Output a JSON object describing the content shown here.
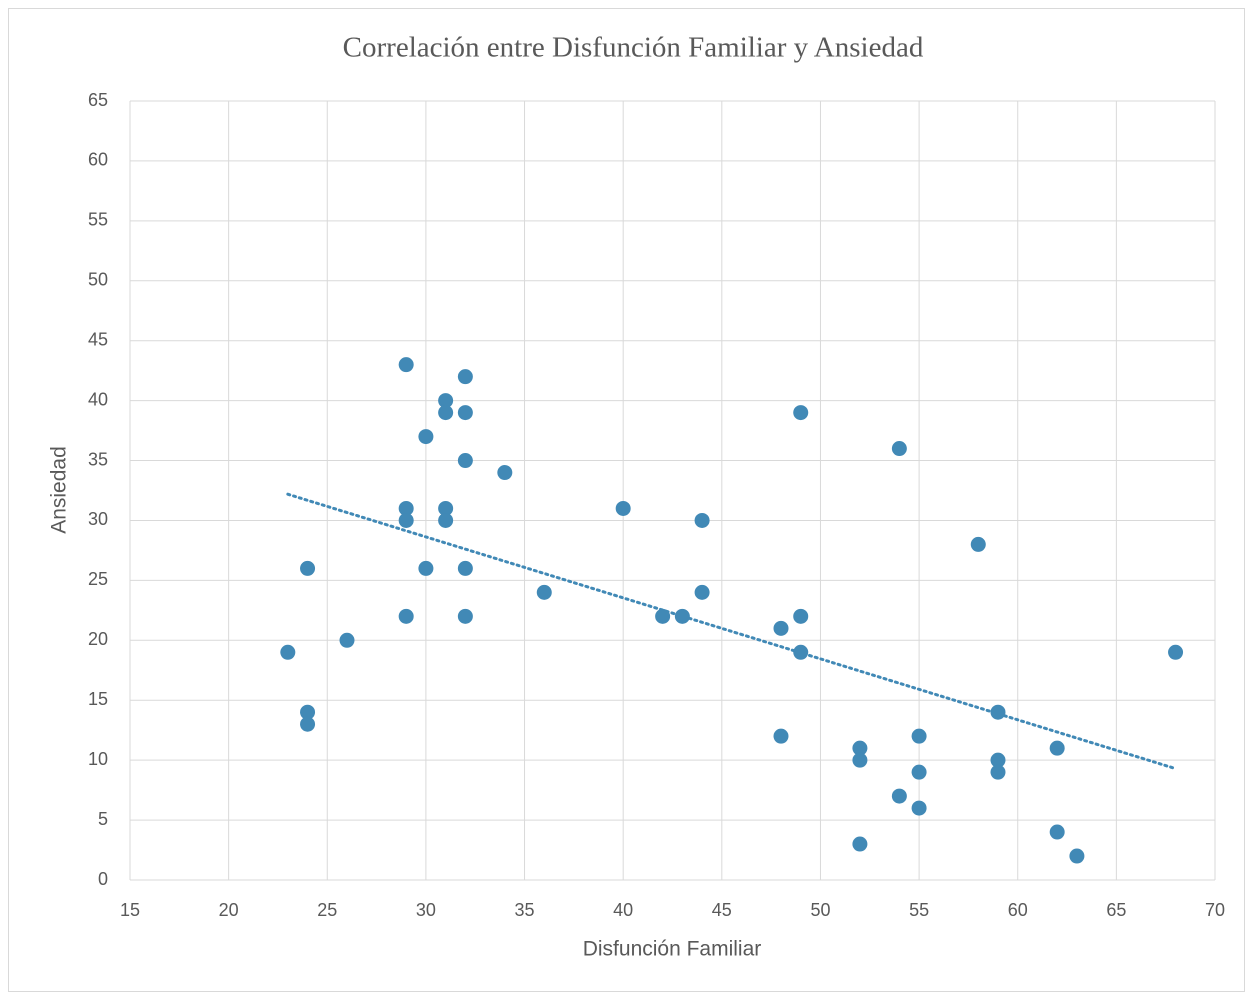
{
  "chart_data": {
    "type": "scatter",
    "title": "Correlación entre Disfunción Familiar y Ansiedad",
    "x_label": "Disfunción Familiar",
    "y_label": "Ansiedad",
    "series": [
      {
        "name": "Ansiedad",
        "color": "#4189b6",
        "x": [
          29,
          32,
          31,
          31,
          32,
          30,
          32,
          34,
          29,
          31,
          40,
          29,
          31,
          44,
          24,
          30,
          32,
          36,
          44,
          29,
          32,
          42,
          43,
          49,
          48,
          26,
          23,
          49,
          68,
          24,
          24,
          59,
          48,
          55,
          52,
          62,
          52,
          59,
          55,
          59,
          54,
          55,
          62,
          52,
          63,
          49,
          54,
          58
        ],
        "values": [
          43,
          42,
          40,
          39,
          39,
          37,
          35,
          34,
          31,
          31,
          31,
          30,
          30,
          30,
          26,
          26,
          26,
          24,
          24,
          22,
          22,
          22,
          22,
          22,
          21,
          20,
          19,
          19,
          19,
          14,
          13,
          14,
          12,
          12,
          11,
          11,
          10,
          10,
          9,
          9,
          7,
          6,
          4,
          3,
          2,
          39,
          36,
          28
        ]
      }
    ],
    "trendline": "linear",
    "xlim": [
      15,
      70
    ],
    "xticks": [
      15,
      20,
      25,
      30,
      35,
      40,
      45,
      50,
      55,
      60,
      65,
      70
    ],
    "ylim": [
      0,
      65
    ],
    "yticks": [
      0,
      5,
      10,
      15,
      20,
      25,
      30,
      35,
      40,
      45,
      50,
      55,
      60,
      65
    ],
    "grid": true
  }
}
